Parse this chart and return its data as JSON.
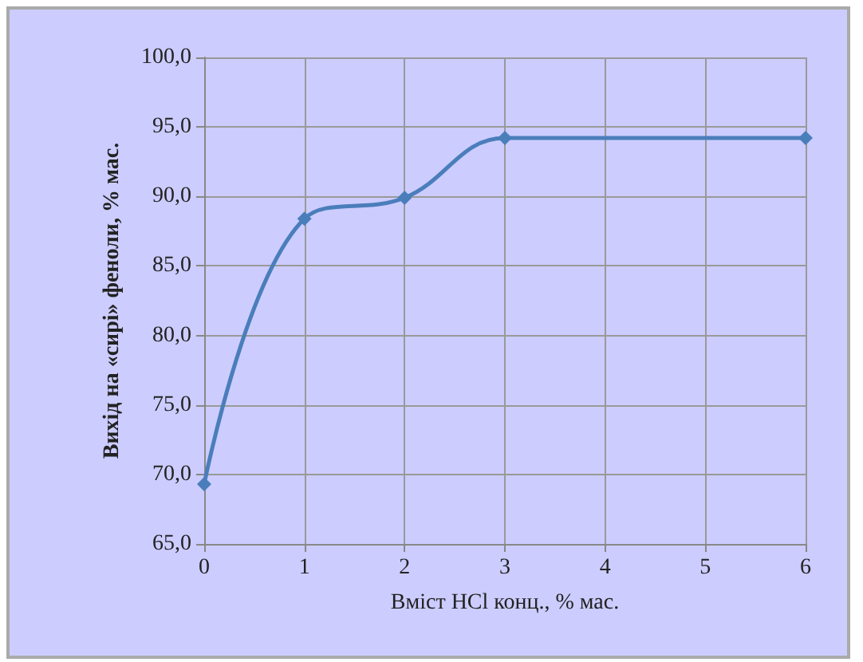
{
  "chart_data": {
    "type": "line",
    "xlabel": "Вміст HCl конц., % мас.",
    "ylabel": "Вихід на «сирі» феноли, % мас.",
    "x": [
      0,
      1,
      2,
      3,
      6
    ],
    "series": [
      {
        "color": "#4a7ebb",
        "values": [
          69.3,
          88.4,
          89.9,
          94.2,
          94.2
        ]
      }
    ],
    "xlim": [
      0,
      6
    ],
    "xticks": [
      0,
      1,
      2,
      3,
      4,
      5,
      6
    ],
    "ylim": [
      65,
      100
    ],
    "yticks": [
      {
        "value": 65,
        "label": "65,0"
      },
      {
        "value": 70,
        "label": "70,0"
      },
      {
        "value": 75,
        "label": "75,0"
      },
      {
        "value": 80,
        "label": "80,0"
      },
      {
        "value": 85,
        "label": "85,0"
      },
      {
        "value": 90,
        "label": "90,0"
      },
      {
        "value": 95,
        "label": "95,0"
      },
      {
        "value": 100,
        "label": "100,0"
      }
    ],
    "grid": true,
    "marker": "diamond",
    "line_style": "solid"
  }
}
